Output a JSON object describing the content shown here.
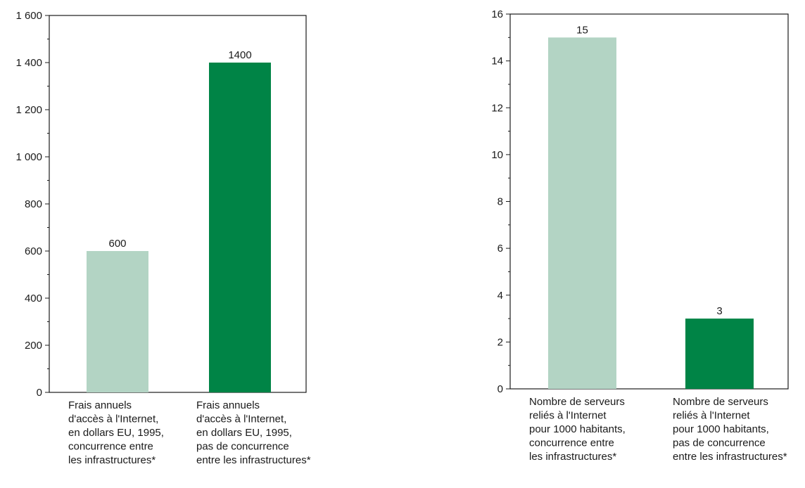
{
  "chart_data": [
    {
      "type": "bar",
      "categories": [
        [
          "Frais annuels",
          "d'accès à l'Internet,",
          "en dollars EU, 1995,",
          "concurrence entre",
          "les infrastructures*"
        ],
        [
          "Frais annuels",
          "d'accès à l'Internet,",
          "en dollars EU, 1995,",
          "pas de concurrence",
          "entre les infrastructures*"
        ]
      ],
      "values": [
        600,
        1400
      ],
      "value_labels": [
        "600",
        "1400"
      ],
      "colors": [
        "#b3d4c4",
        "#008446"
      ],
      "ylim": [
        0,
        1600
      ],
      "yticks": [
        0,
        200,
        400,
        600,
        800,
        1000,
        1200,
        1400,
        1600
      ],
      "ytick_labels": [
        "0",
        "200",
        "400",
        "600",
        "800",
        "1 000",
        "1 200",
        "1 400",
        "1 600"
      ],
      "title": "",
      "xlabel": "",
      "ylabel": "",
      "grid": false
    },
    {
      "type": "bar",
      "categories": [
        [
          "Nombre de serveurs",
          "reliés à l'Internet",
          "pour 1000 habitants,",
          "concurrence entre",
          "les infrastructures*"
        ],
        [
          "Nombre de serveurs",
          "reliés à l'Internet",
          "pour 1000 habitants,",
          "pas de concurrence",
          "entre les infrastructures*"
        ]
      ],
      "values": [
        15,
        3
      ],
      "value_labels": [
        "15",
        "3"
      ],
      "colors": [
        "#b3d4c4",
        "#008446"
      ],
      "ylim": [
        0,
        16
      ],
      "yticks": [
        0,
        2,
        4,
        6,
        8,
        10,
        12,
        14,
        16
      ],
      "ytick_labels": [
        "0",
        "2",
        "4",
        "6",
        "8",
        "10",
        "12",
        "14",
        "16"
      ],
      "title": "",
      "xlabel": "",
      "ylabel": "",
      "grid": false
    }
  ]
}
